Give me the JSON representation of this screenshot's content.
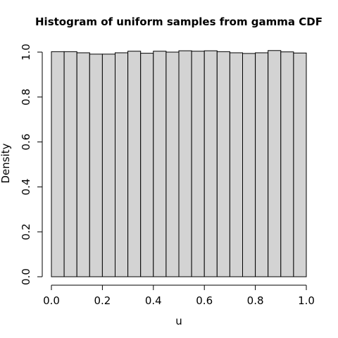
{
  "chart_data": {
    "type": "bar",
    "title": "Histogram of uniform samples from gamma CDF",
    "xlabel": "u",
    "ylabel": "Density",
    "xlim": [
      0.0,
      1.0
    ],
    "ylim": [
      0.0,
      1.0
    ],
    "bin_width": 0.05,
    "bin_starts": [
      0.0,
      0.05,
      0.1,
      0.15,
      0.2,
      0.25,
      0.3,
      0.35,
      0.4,
      0.45,
      0.5,
      0.55,
      0.6,
      0.65,
      0.7,
      0.75,
      0.8,
      0.85,
      0.9,
      0.95
    ],
    "values": [
      1.002,
      1.002,
      0.997,
      0.991,
      0.991,
      0.997,
      1.004,
      0.995,
      1.004,
      1.0,
      1.006,
      1.004,
      1.006,
      1.002,
      0.997,
      0.994,
      0.997,
      1.007,
      1.001,
      0.996
    ],
    "x_ticks": [
      "0.0",
      "0.2",
      "0.4",
      "0.6",
      "0.8",
      "1.0"
    ],
    "y_ticks": [
      "0.0",
      "0.2",
      "0.4",
      "0.6",
      "0.8",
      "1.0"
    ],
    "bar_color": "#d3d3d3",
    "edge_color": "#000000",
    "grid": false,
    "legend": "none"
  }
}
